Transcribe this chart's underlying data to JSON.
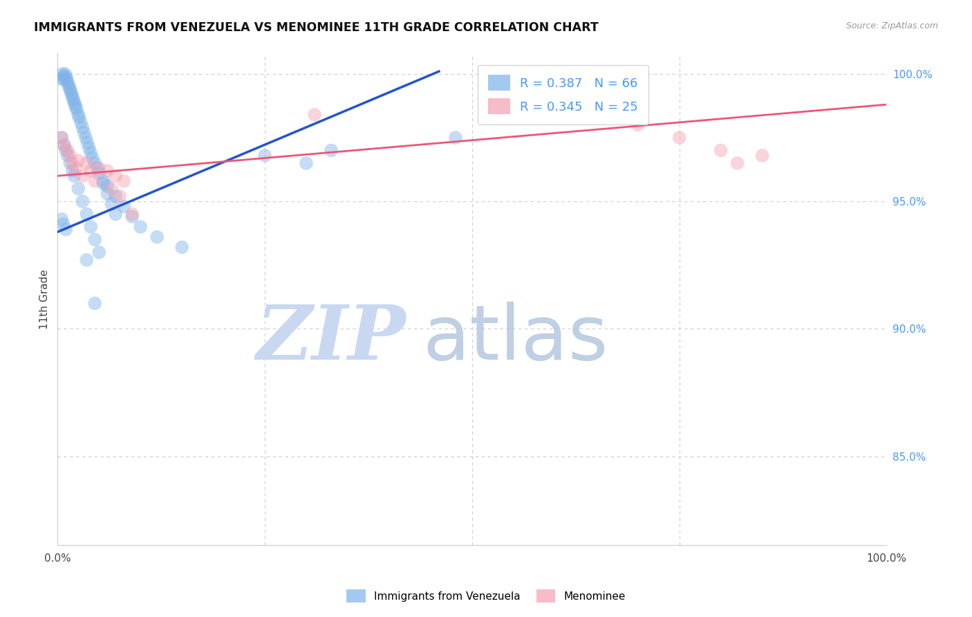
{
  "title": "IMMIGRANTS FROM VENEZUELA VS MENOMINEE 11TH GRADE CORRELATION CHART",
  "source": "Source: ZipAtlas.com",
  "ylabel": "11th Grade",
  "right_ytick_labels": [
    "100.0%",
    "95.0%",
    "90.0%",
    "85.0%"
  ],
  "right_ytick_vals": [
    1.0,
    0.95,
    0.9,
    0.85
  ],
  "xlim": [
    0.0,
    1.0
  ],
  "ylim": [
    0.815,
    1.008
  ],
  "legend1_label": "R = 0.387   N = 66",
  "legend2_label": "R = 0.345   N = 25",
  "blue_color": "#7EB3E8",
  "pink_color": "#F4A0B0",
  "trend_blue": "#2255CC",
  "trend_pink": "#EE5577",
  "blue_trend_x": [
    0.0,
    0.46
  ],
  "blue_trend_y": [
    0.938,
    1.001
  ],
  "pink_trend_x": [
    0.0,
    1.0
  ],
  "pink_trend_y": [
    0.96,
    0.988
  ],
  "blue_x": [
    0.004,
    0.006,
    0.007,
    0.008,
    0.009,
    0.01,
    0.011,
    0.012,
    0.013,
    0.014,
    0.015,
    0.016,
    0.017,
    0.018,
    0.019,
    0.02,
    0.021,
    0.022,
    0.023,
    0.025,
    0.026,
    0.028,
    0.03,
    0.032,
    0.034,
    0.036,
    0.038,
    0.04,
    0.042,
    0.045,
    0.048,
    0.05,
    0.055,
    0.06,
    0.065,
    0.07,
    0.005,
    0.008,
    0.01,
    0.012,
    0.015,
    0.018,
    0.02,
    0.025,
    0.03,
    0.035,
    0.04,
    0.045,
    0.05,
    0.055,
    0.06,
    0.07,
    0.08,
    0.09,
    0.1,
    0.12,
    0.15,
    0.005,
    0.007,
    0.01,
    0.33,
    0.48,
    0.3,
    0.25,
    0.035,
    0.045
  ],
  "blue_y": [
    0.998,
    1.0,
    0.999,
    0.998,
    1.0,
    0.999,
    0.998,
    0.997,
    0.996,
    0.995,
    0.994,
    0.993,
    0.992,
    0.991,
    0.99,
    0.989,
    0.988,
    0.987,
    0.986,
    0.984,
    0.983,
    0.981,
    0.979,
    0.977,
    0.975,
    0.973,
    0.971,
    0.969,
    0.967,
    0.965,
    0.963,
    0.961,
    0.957,
    0.953,
    0.949,
    0.945,
    0.975,
    0.972,
    0.97,
    0.968,
    0.965,
    0.962,
    0.96,
    0.955,
    0.95,
    0.945,
    0.94,
    0.935,
    0.93,
    0.958,
    0.956,
    0.952,
    0.948,
    0.944,
    0.94,
    0.936,
    0.932,
    0.943,
    0.941,
    0.939,
    0.97,
    0.975,
    0.965,
    0.968,
    0.927,
    0.91
  ],
  "pink_x": [
    0.005,
    0.008,
    0.012,
    0.015,
    0.018,
    0.022,
    0.025,
    0.03,
    0.035,
    0.04,
    0.045,
    0.05,
    0.06,
    0.07,
    0.08,
    0.56,
    0.7,
    0.75,
    0.8,
    0.82,
    0.85,
    0.31,
    0.065,
    0.075,
    0.09
  ],
  "pink_y": [
    0.975,
    0.972,
    0.97,
    0.968,
    0.965,
    0.963,
    0.966,
    0.96,
    0.965,
    0.962,
    0.958,
    0.963,
    0.962,
    0.96,
    0.958,
    0.985,
    0.98,
    0.975,
    0.97,
    0.965,
    0.968,
    0.984,
    0.955,
    0.952,
    0.945
  ]
}
